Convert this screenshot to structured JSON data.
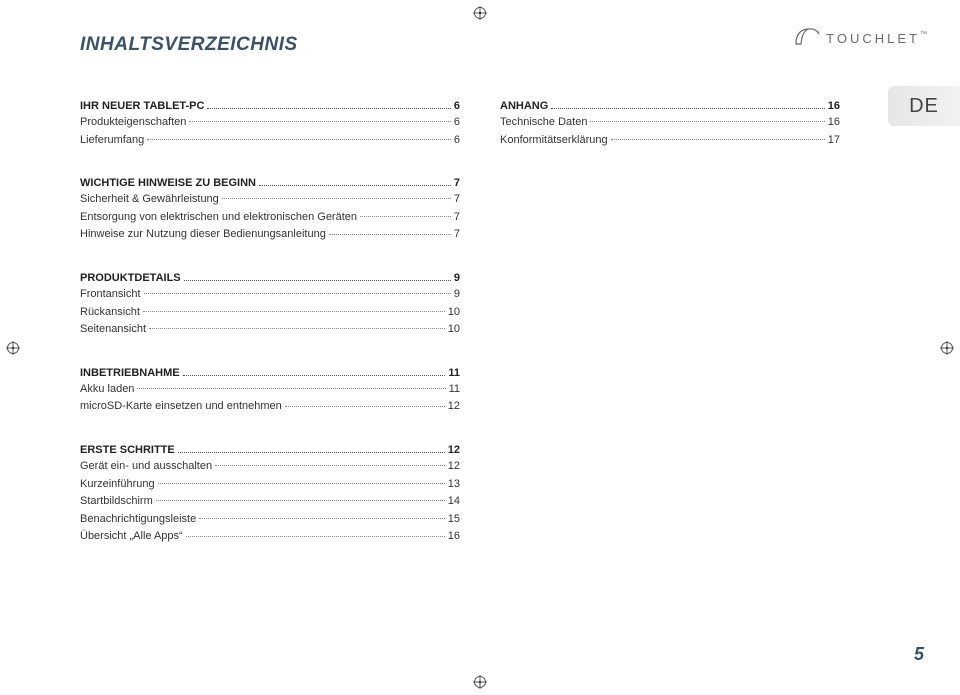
{
  "colors": {
    "heading": "#3a5268",
    "text": "#333333",
    "badge_bg_from": "#e6e6e6",
    "badge_bg_to": "#f2f2f2",
    "brand": "#6a6a6a",
    "page_bg": "#ffffff"
  },
  "typography": {
    "title_fontsize": 19,
    "section_fontsize": 11,
    "line_fontsize": 11,
    "lang_fontsize": 20,
    "brand_fontsize": 13,
    "footer_fontsize": 18
  },
  "title": "INHALTSVERZEICHNIS",
  "brand": {
    "text": "TOUCHLET",
    "tm": "™"
  },
  "lang": "DE",
  "footer_page": "5",
  "left_sections": [
    {
      "heading": {
        "label": "IHR NEUER TABLET-PC",
        "page": "6"
      },
      "lines": [
        {
          "label": "Produkteigenschaften",
          "page": "6"
        },
        {
          "label": "Lieferumfang",
          "page": "6"
        }
      ]
    },
    {
      "heading": {
        "label": "WICHTIGE HINWEISE ZU BEGINN",
        "page": "7"
      },
      "lines": [
        {
          "label": "Sicherheit & Gewährleistung",
          "page": "7"
        },
        {
          "label": "Entsorgung von elektrischen und elektronischen Geräten",
          "page": "7"
        },
        {
          "label": "Hinweise zur Nutzung dieser Bedienungsanleitung",
          "page": "7"
        }
      ]
    },
    {
      "heading": {
        "label": "PRODUKTDETAILS",
        "page": "9"
      },
      "lines": [
        {
          "label": "Frontansicht",
          "page": "9"
        },
        {
          "label": "Rückansicht",
          "page": "10"
        },
        {
          "label": "Seitenansicht",
          "page": "10"
        }
      ]
    },
    {
      "heading": {
        "label": "INBETRIEBNAHME",
        "page": "11"
      },
      "lines": [
        {
          "label": "Akku laden",
          "page": "11"
        },
        {
          "label": "microSD-Karte einsetzen und entnehmen",
          "page": "12"
        }
      ]
    },
    {
      "heading": {
        "label": "ERSTE SCHRITTE",
        "page": "12"
      },
      "lines": [
        {
          "label": "Gerät ein- und ausschalten",
          "page": "12"
        },
        {
          "label": "Kurzeinführung",
          "page": "13"
        },
        {
          "label": "Startbildschirm",
          "page": "14"
        },
        {
          "label": "Benachrichtigungsleiste",
          "page": "15"
        },
        {
          "label": "Übersicht „Alle Apps“",
          "page": "16"
        }
      ]
    }
  ],
  "right_sections": [
    {
      "heading": {
        "label": "ANHANG",
        "page": "16"
      },
      "lines": [
        {
          "label": "Technische Daten",
          "page": "16"
        },
        {
          "label": "Konformitätserklärung",
          "page": "17"
        }
      ]
    }
  ]
}
